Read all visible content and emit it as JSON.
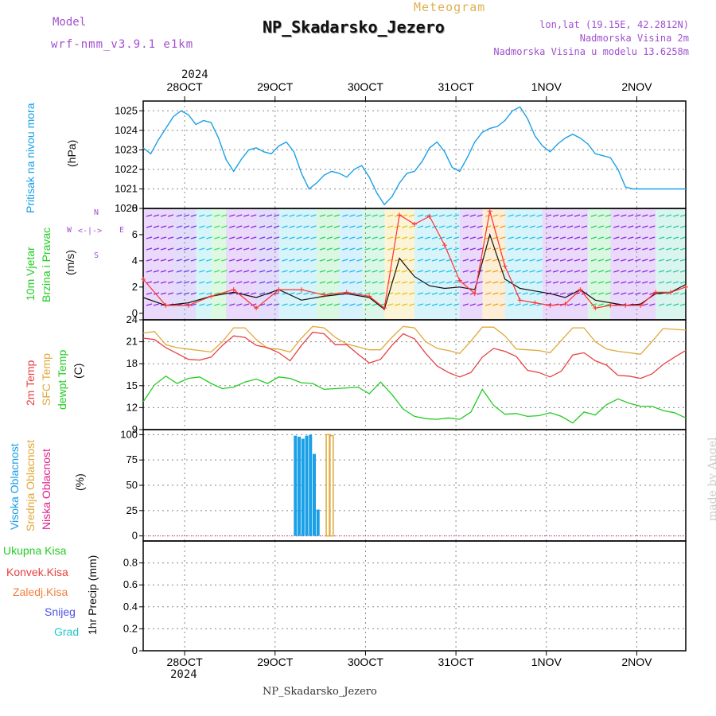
{
  "header": {
    "model_label": "Model",
    "model_run": "wrf-nmm_v3.9.1 e1km",
    "title": "Meteogram",
    "station": "NP_Skadarsko_Jezero",
    "lonlat": "lon,lat (19.15E, 42.2812N)",
    "altitude": "Nadmorska Visina 2m",
    "model_altitude": "Nadmorska Visina u modelu 13.6258m",
    "year_top": "2024",
    "year_bottom": "2024",
    "footer": "NP_Skadarsko_Jezero",
    "credit": "made by Angel"
  },
  "colors": {
    "pressure": "#1aa0e6",
    "t2m": "#e84040",
    "sfc": "#e0a838",
    "dewpt": "#22cc22",
    "cloud_high": "#1aa0e6",
    "cloud_mid": "#e0a838",
    "cloud_low": "#e0208a",
    "wind_speed": "#111111",
    "wind_gust": "#ff3030",
    "model": "#a050d0"
  },
  "axis_labels": {
    "panel1": [
      {
        "text": "Pritisak na nivou mora",
        "color": "#1aa0e6"
      },
      {
        "text": "(hPa)",
        "color": "#111111"
      }
    ],
    "panel2": [
      {
        "text": "10m Vjetar",
        "color": "#22cc22"
      },
      {
        "text": "Brzina i Pravac",
        "color": "#22cc22"
      },
      {
        "text": "(m/s)",
        "color": "#111111"
      }
    ],
    "panel3": [
      {
        "text": "2m Temp",
        "color": "#e84040"
      },
      {
        "text": "SFC Temp",
        "color": "#e0a838"
      },
      {
        "text": "dewpt Temp",
        "color": "#22cc22"
      },
      {
        "text": "(C)",
        "color": "#111111"
      }
    ],
    "panel4": [
      {
        "text": "Visoka Oblacnost",
        "color": "#1aa0e6"
      },
      {
        "text": "Srednja Oblacnost",
        "color": "#e0a838"
      },
      {
        "text": "Niska Oblacnost",
        "color": "#e0208a"
      },
      {
        "text": "(%)",
        "color": "#111111"
      }
    ],
    "panel5_unit": "1hr Precip (mm)"
  },
  "compass": {
    "north": "N",
    "south": "S",
    "west": "W",
    "east": "E"
  },
  "precip_legend": [
    {
      "text": "Ukupna Kisa",
      "color": "#22cc22"
    },
    {
      "text": "Konvek.Kisa",
      "color": "#e84040"
    },
    {
      "text": "Zaledj.Kisa",
      "color": "#f08040"
    },
    {
      "text": "Snijeg",
      "color": "#5050e8"
    },
    {
      "text": "Grad",
      "color": "#20c8c8"
    }
  ],
  "chart_data": [
    {
      "type": "line",
      "name": "pressure",
      "x_ticks": [
        "28OCT",
        "29OCT",
        "30OCT",
        "31OCT",
        "1NOV",
        "2NOV"
      ],
      "x_range": [
        0,
        144
      ],
      "ylim": [
        1020,
        1025.5
      ],
      "y_ticks": [
        1020,
        1021,
        1022,
        1023,
        1024,
        1025
      ],
      "grid": true,
      "x": [
        0,
        2,
        4,
        6,
        8,
        10,
        12,
        14,
        16,
        18,
        20,
        22,
        24,
        26,
        28,
        30,
        32,
        34,
        36,
        38,
        40,
        42,
        44,
        46,
        48,
        50,
        52,
        54,
        56,
        58,
        60,
        62,
        64,
        66,
        68,
        70,
        72,
        74,
        76,
        78,
        80,
        82,
        84,
        86,
        88,
        90,
        92,
        94,
        96,
        98,
        100,
        102,
        104,
        106,
        108,
        110,
        112,
        114,
        116,
        118,
        120,
        122,
        124,
        126,
        128,
        130,
        132,
        134,
        136,
        138,
        140,
        142,
        144
      ],
      "values": [
        1023.1,
        1022.8,
        1023.5,
        1024.1,
        1024.7,
        1025.0,
        1024.8,
        1024.3,
        1024.5,
        1024.4,
        1023.6,
        1022.5,
        1021.9,
        1022.5,
        1023.0,
        1023.1,
        1022.9,
        1022.8,
        1023.2,
        1023.4,
        1022.9,
        1021.8,
        1021.0,
        1021.3,
        1021.7,
        1021.9,
        1021.8,
        1021.6,
        1022.0,
        1022.2,
        1021.6,
        1020.8,
        1020.2,
        1020.6,
        1021.3,
        1021.8,
        1021.9,
        1022.4,
        1023.1,
        1023.4,
        1022.9,
        1022.1,
        1021.9,
        1022.6,
        1023.4,
        1023.9,
        1024.1,
        1024.2,
        1024.5,
        1025.0,
        1025.2,
        1024.6,
        1023.7,
        1023.2,
        1022.9,
        1023.3,
        1023.6,
        1023.8,
        1023.6,
        1023.3,
        1022.8,
        1022.7,
        1022.6,
        1022.0,
        1021.1,
        1021.0,
        1021.0,
        1021.0,
        1021.0,
        1021.0,
        1021.0,
        1021.0,
        1021.0
      ]
    },
    {
      "type": "line",
      "name": "wind",
      "ylim": [
        -0.5,
        8
      ],
      "y_ticks": [
        0,
        2,
        4,
        6,
        8
      ],
      "series": [
        {
          "name": "speed",
          "x": [
            0,
            6,
            12,
            18,
            24,
            30,
            36,
            42,
            48,
            54,
            60,
            64,
            68,
            72,
            76,
            80,
            84,
            88,
            92,
            96,
            100,
            104,
            108,
            112,
            116,
            120,
            124,
            128,
            132,
            136,
            140,
            144
          ],
          "values": [
            1.2,
            0.6,
            0.8,
            1.3,
            1.6,
            1.2,
            1.8,
            1.0,
            1.3,
            1.5,
            1.2,
            0.3,
            4.2,
            2.8,
            2.1,
            1.9,
            2.0,
            1.8,
            6.0,
            2.6,
            1.9,
            1.7,
            1.5,
            1.2,
            1.8,
            1.0,
            0.8,
            0.6,
            0.7,
            1.5,
            1.6,
            2.2
          ]
        },
        {
          "name": "gust",
          "x": [
            0,
            6,
            12,
            18,
            24,
            30,
            36,
            42,
            48,
            54,
            60,
            64,
            68,
            72,
            76,
            80,
            84,
            88,
            92,
            96,
            100,
            104,
            108,
            112,
            116,
            120,
            124,
            128,
            132,
            136,
            140,
            144
          ],
          "values": [
            2.6,
            0.6,
            0.6,
            1.3,
            1.8,
            0.4,
            1.8,
            1.8,
            1.4,
            1.6,
            1.3,
            0.4,
            7.5,
            6.8,
            7.4,
            5.2,
            2.5,
            1.5,
            7.8,
            3.6,
            1.0,
            0.8,
            0.6,
            0.7,
            1.8,
            0.4,
            0.6,
            0.6,
            0.6,
            1.6,
            1.6,
            2.0
          ]
        }
      ]
    },
    {
      "type": "line",
      "name": "temperature",
      "ylim": [
        9,
        24
      ],
      "y_ticks": [
        9,
        12,
        15,
        18,
        21,
        24
      ],
      "series": [
        {
          "name": "t2m",
          "x": [
            0,
            3,
            6,
            9,
            12,
            15,
            18,
            21,
            24,
            27,
            30,
            33,
            36,
            39,
            42,
            45,
            48,
            51,
            54,
            57,
            60,
            63,
            66,
            69,
            72,
            75,
            78,
            81,
            84,
            87,
            90,
            93,
            96,
            99,
            102,
            105,
            108,
            111,
            114,
            117,
            120,
            123,
            126,
            129,
            132,
            135,
            138,
            141,
            144
          ],
          "values": [
            21.5,
            21.3,
            20.2,
            19.4,
            18.6,
            18.5,
            18.9,
            20.5,
            21.8,
            21.6,
            20.5,
            20.2,
            19.5,
            18.4,
            20.5,
            22.3,
            22.1,
            20.6,
            20.6,
            19.3,
            18.1,
            18.6,
            20.5,
            22.1,
            21.4,
            19.4,
            17.7,
            16.8,
            16.2,
            16.8,
            18.9,
            20.1,
            19.7,
            19.0,
            17.1,
            16.8,
            16.2,
            17.0,
            19.2,
            19.5,
            18.4,
            17.8,
            16.4,
            16.3,
            16.0,
            16.6,
            17.9,
            18.9,
            19.8
          ]
        },
        {
          "name": "sfc",
          "x": [
            0,
            3,
            6,
            9,
            12,
            15,
            18,
            21,
            24,
            27,
            30,
            33,
            36,
            39,
            42,
            45,
            48,
            51,
            54,
            57,
            60,
            63,
            66,
            69,
            72,
            75,
            78,
            81,
            84,
            87,
            90,
            93,
            96,
            99,
            102,
            105,
            108,
            111,
            114,
            117,
            120,
            123,
            126,
            129,
            132,
            135,
            138,
            141,
            144
          ],
          "values": [
            22.2,
            22.4,
            20.6,
            20.2,
            20.0,
            19.8,
            19.6,
            21.0,
            22.9,
            22.9,
            21.3,
            20.1,
            20.0,
            19.6,
            21.5,
            23.1,
            22.9,
            21.6,
            20.7,
            20.3,
            19.9,
            19.9,
            21.6,
            23.1,
            22.9,
            21.0,
            20.1,
            19.8,
            19.4,
            21.1,
            23.0,
            23.0,
            21.8,
            20.0,
            19.9,
            19.8,
            19.5,
            21.2,
            22.9,
            22.9,
            21.0,
            20.0,
            19.7,
            19.5,
            19.3,
            21.0,
            22.8,
            22.7,
            22.6
          ]
        },
        {
          "name": "dewpt",
          "x": [
            0,
            3,
            6,
            9,
            12,
            15,
            18,
            21,
            24,
            27,
            30,
            33,
            36,
            39,
            42,
            45,
            48,
            51,
            54,
            57,
            60,
            63,
            66,
            69,
            72,
            75,
            78,
            81,
            84,
            87,
            90,
            93,
            96,
            99,
            102,
            105,
            108,
            111,
            114,
            117,
            120,
            123,
            126,
            129,
            132,
            135,
            138,
            141,
            144
          ],
          "values": [
            12.8,
            15.1,
            16.3,
            15.3,
            16.0,
            16.2,
            15.3,
            14.6,
            14.8,
            15.5,
            15.9,
            15.3,
            16.2,
            16.0,
            15.4,
            15.3,
            14.5,
            14.6,
            14.7,
            14.8,
            13.9,
            15.5,
            13.8,
            11.8,
            10.8,
            10.5,
            10.4,
            10.6,
            10.4,
            11.4,
            14.5,
            12.3,
            11.1,
            11.2,
            10.8,
            10.9,
            11.3,
            10.8,
            9.9,
            11.4,
            11.0,
            12.4,
            13.2,
            12.6,
            12.2,
            12.2,
            11.6,
            11.3,
            10.6
          ]
        }
      ]
    },
    {
      "type": "bar",
      "name": "cloud_cover",
      "ylim": [
        -5,
        105
      ],
      "y_ticks": [
        0,
        25,
        50,
        75,
        100
      ],
      "series": [
        {
          "name": "high",
          "x": [
            40.5,
            41.5,
            42.5,
            43.5,
            44.5,
            45.5,
            46.5
          ],
          "values": [
            99,
            98,
            96,
            99,
            100,
            81,
            26
          ]
        },
        {
          "name": "mid",
          "x": [
            49.0,
            50.0
          ],
          "values": [
            100,
            99
          ]
        },
        {
          "name": "low",
          "x": [],
          "values": []
        }
      ]
    },
    {
      "type": "bar",
      "name": "precipitation",
      "ylim": [
        0,
        1.0
      ],
      "y_ticks": [
        0,
        0.2,
        0.4,
        0.6,
        0.8
      ],
      "series": [
        {
          "name": "total",
          "x": [],
          "values": []
        },
        {
          "name": "convective",
          "x": [],
          "values": []
        },
        {
          "name": "freezing",
          "x": [],
          "values": []
        },
        {
          "name": "snow",
          "x": [],
          "values": []
        },
        {
          "name": "hail",
          "x": [],
          "values": []
        }
      ]
    }
  ]
}
